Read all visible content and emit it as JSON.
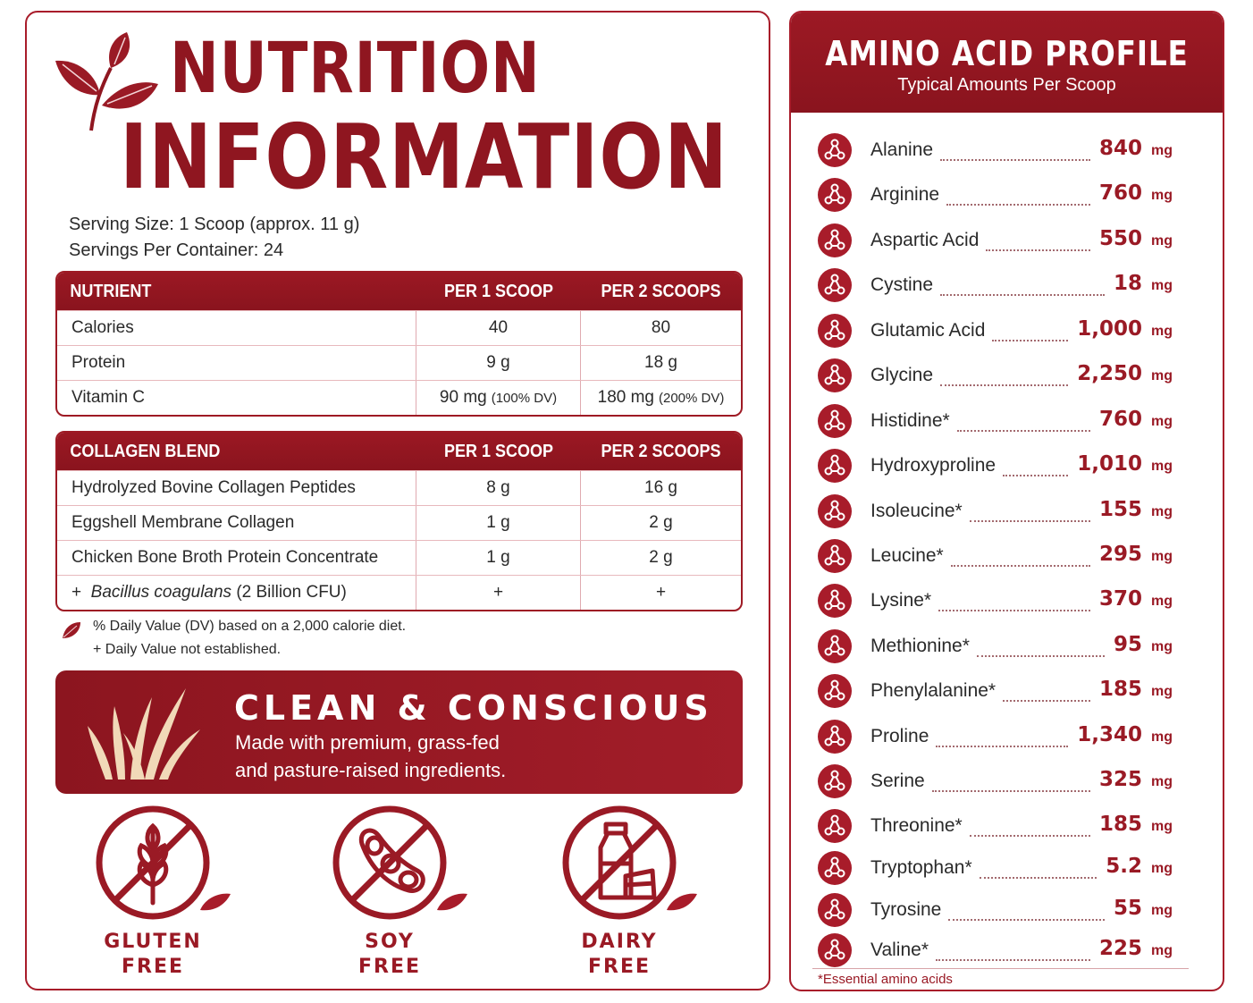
{
  "title": {
    "line1": "NUTRITION",
    "line2": "INFORMATION"
  },
  "serving": {
    "size": "Serving Size: 1 Scoop (approx. 11 g)",
    "per_container": "Servings Per Container: 24"
  },
  "nutrient_table": {
    "headers": [
      "NUTRIENT",
      "PER 1 SCOOP",
      "PER 2 SCOOPS"
    ],
    "rows": [
      {
        "name": "Calories",
        "one": "40",
        "one_note": "",
        "two": "80",
        "two_note": ""
      },
      {
        "name": "Protein",
        "one": "9 g",
        "one_note": "",
        "two": "18 g",
        "two_note": ""
      },
      {
        "name": "Vitamin C",
        "one": "90 mg",
        "one_note": "(100% DV)",
        "two": "180 mg",
        "two_note": "(200% DV)"
      }
    ]
  },
  "collagen_table": {
    "headers": [
      "COLLAGEN BLEND",
      "PER 1 SCOOP",
      "PER 2 SCOOPS"
    ],
    "rows": [
      {
        "name": "Hydrolyzed Bovine Collagen Peptides",
        "one": "8 g",
        "two": "16 g"
      },
      {
        "name": "Eggshell Membrane Collagen",
        "one": "1 g",
        "two": "2 g"
      },
      {
        "name": "Chicken Bone Broth Protein Concentrate",
        "one": "1 g",
        "two": "2 g"
      }
    ],
    "probiotic": {
      "prefix": "+",
      "name": "Bacillus coagulans",
      "detail": "(2 Billion CFU)",
      "one": "+",
      "two": "+"
    }
  },
  "footnotes": {
    "dv": "% Daily Value (DV) based on a 2,000 calorie diet.",
    "not_established": "+ Daily Value not established."
  },
  "banner": {
    "title": "CLEAN & CONSCIOUS",
    "line1": "Made with premium, grass-fed",
    "line2": "and pasture-raised ingredients."
  },
  "badges": [
    {
      "icon": "wheat-icon",
      "line1": "GLUTEN",
      "line2": "FREE"
    },
    {
      "icon": "soybean-icon",
      "line1": "SOY",
      "line2": "FREE"
    },
    {
      "icon": "milk-bottle-icon",
      "line1": "DAIRY",
      "line2": "FREE"
    }
  ],
  "amino": {
    "title": "AMINO ACID PROFILE",
    "subtitle": "Typical Amounts Per Scoop",
    "unit": "mg",
    "note": "*Essential amino acids",
    "items": [
      {
        "name": "Alanine",
        "value": "840"
      },
      {
        "name": "Arginine",
        "value": "760"
      },
      {
        "name": "Aspartic Acid",
        "value": "550"
      },
      {
        "name": "Cystine",
        "value": "18"
      },
      {
        "name": "Glutamic Acid",
        "value": "1,000"
      },
      {
        "name": "Glycine",
        "value": "2,250"
      },
      {
        "name": "Histidine*",
        "value": "760"
      },
      {
        "name": "Hydroxyproline",
        "value": "1,010"
      },
      {
        "name": "Isoleucine*",
        "value": "155"
      },
      {
        "name": "Leucine*",
        "value": "295"
      },
      {
        "name": "Lysine*",
        "value": "370"
      },
      {
        "name": "Methionine*",
        "value": "95"
      },
      {
        "name": "Phenylalanine*",
        "value": "185"
      },
      {
        "name": "Proline",
        "value": "1,340"
      },
      {
        "name": "Serine",
        "value": "325"
      },
      {
        "name": "Threonine*",
        "value": "185"
      },
      {
        "name": "Tryptophan*",
        "value": "5.2"
      },
      {
        "name": "Tyrosine",
        "value": "55"
      },
      {
        "name": "Valine*",
        "value": "225"
      }
    ]
  },
  "colors": {
    "brand_red": "#8f1620",
    "accent_red": "#a81c2a",
    "cream": "#f1d9b8"
  }
}
